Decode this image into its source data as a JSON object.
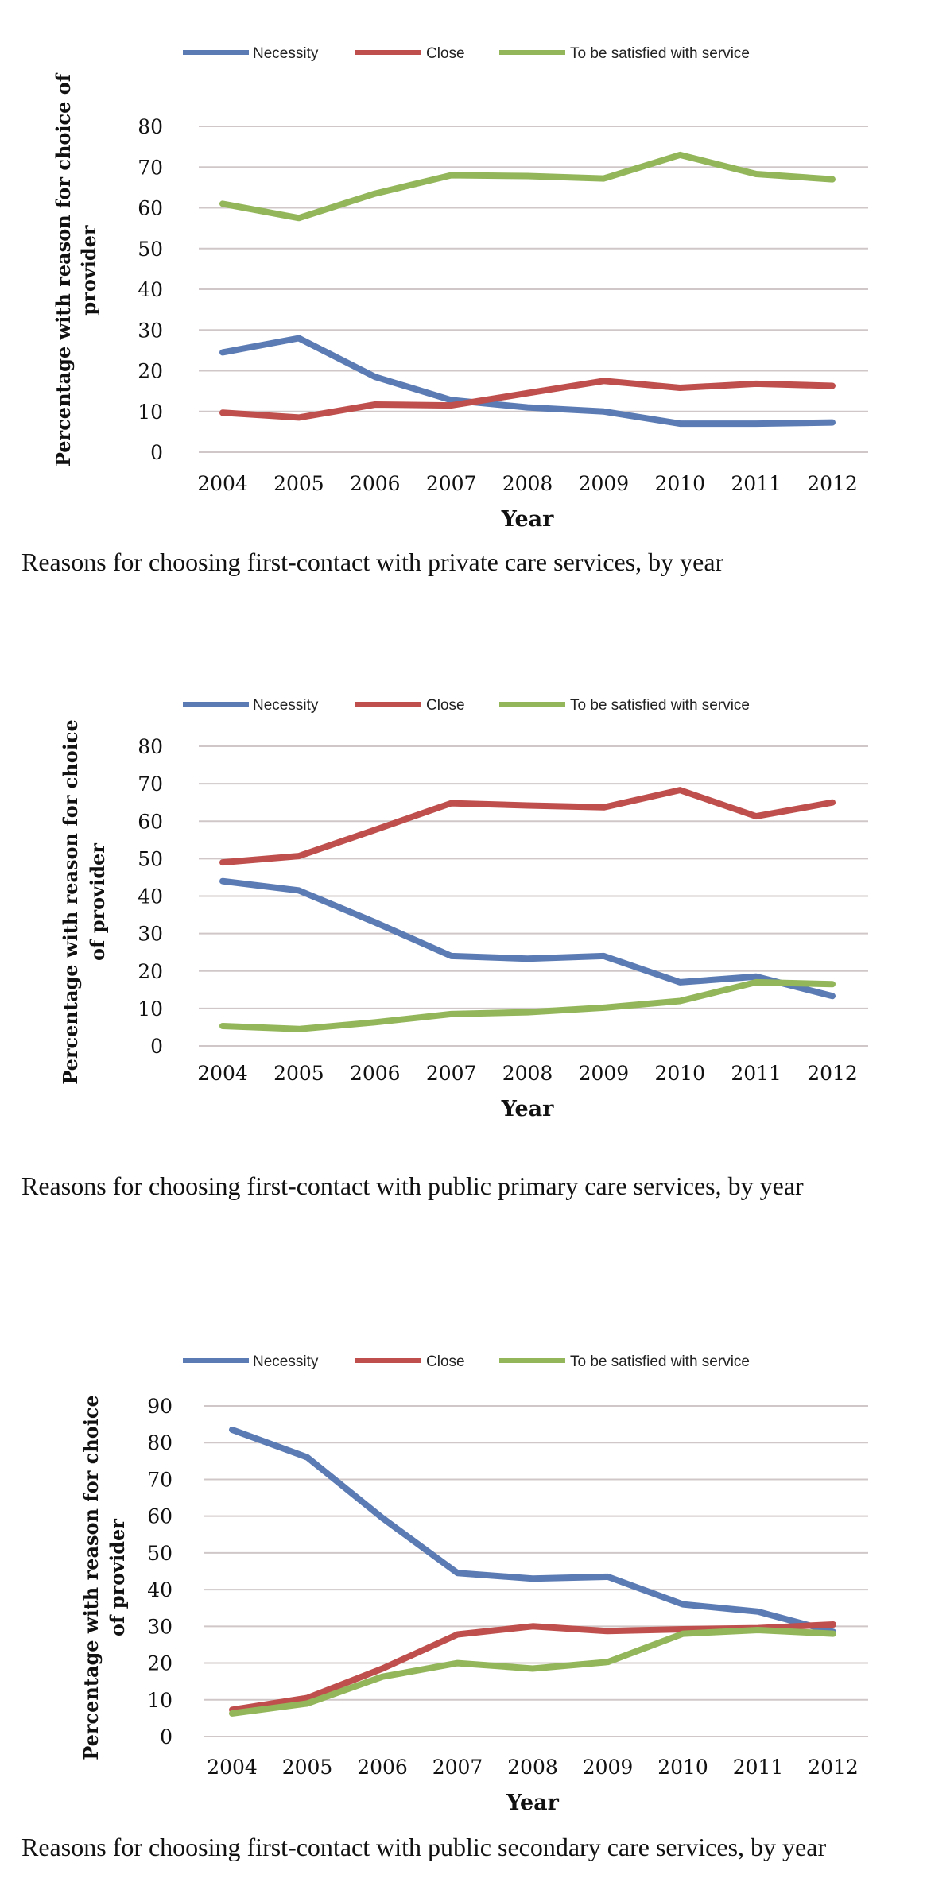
{
  "legend": {
    "necessity": "Necessity",
    "close": "Close",
    "satisfied": "To be satisfied with service"
  },
  "colors": {
    "necessity": "#5b7bb4",
    "close": "#bf4f4c",
    "satisfied": "#93b65a"
  },
  "chart_data": [
    {
      "type": "line",
      "caption": "Reasons for choosing first-contact with private care services, by year",
      "xlabel": "Year",
      "ylabel_lines": [
        "Percentage with reason for choice of",
        "provider"
      ],
      "categories": [
        "2004",
        "2005",
        "2006",
        "2007",
        "2008",
        "2009",
        "2010",
        "2011",
        "2012"
      ],
      "ylim": [
        0,
        80
      ],
      "yticks": [
        0,
        10,
        20,
        30,
        40,
        50,
        60,
        70,
        80
      ],
      "grid": true,
      "legend_position": "top",
      "series": [
        {
          "name": "Necessity",
          "values": [
            24.5,
            28,
            18.5,
            12.8,
            11,
            10,
            7,
            7,
            7.3
          ]
        },
        {
          "name": "Close",
          "values": [
            9.7,
            8.5,
            11.7,
            11.5,
            14.5,
            17.5,
            15.8,
            16.8,
            16.3
          ]
        },
        {
          "name": "To be satisfied with service",
          "values": [
            61,
            57.5,
            63.5,
            68,
            67.8,
            67.2,
            73,
            68.3,
            67
          ]
        }
      ]
    },
    {
      "type": "line",
      "caption": "Reasons for choosing first-contact with  public  primary care services, by year",
      "xlabel": "Year",
      "ylabel_lines": [
        "Percentage with reason for choice",
        "of provider"
      ],
      "categories": [
        "2004",
        "2005",
        "2006",
        "2007",
        "2008",
        "2009",
        "2010",
        "2011",
        "2012"
      ],
      "ylim": [
        0,
        80
      ],
      "yticks": [
        0,
        10,
        20,
        30,
        40,
        50,
        60,
        70,
        80
      ],
      "grid": true,
      "legend_position": "top",
      "series": [
        {
          "name": "Necessity",
          "values": [
            44,
            41.5,
            33,
            24,
            23.3,
            24,
            17,
            18.5,
            13.3
          ]
        },
        {
          "name": "Close",
          "values": [
            49,
            50.7,
            57.7,
            64.8,
            64.2,
            63.7,
            68.3,
            61.3,
            65
          ]
        },
        {
          "name": "To be satisfied with service",
          "values": [
            5.3,
            4.5,
            6.3,
            8.5,
            9,
            10.2,
            12,
            17,
            16.5
          ]
        }
      ]
    },
    {
      "type": "line",
      "caption": "Reasons for choosing first-contact with public secondary care services, by year",
      "xlabel": "Year",
      "ylabel_lines": [
        "Percentage with reason for choice",
        "of provider"
      ],
      "categories": [
        "2004",
        "2005",
        "2006",
        "2007",
        "2008",
        "2009",
        "2010",
        "2011",
        "2012"
      ],
      "ylim": [
        0,
        90
      ],
      "yticks": [
        0,
        10,
        20,
        30,
        40,
        50,
        60,
        70,
        80,
        90
      ],
      "grid": true,
      "legend_position": "top",
      "series": [
        {
          "name": "Necessity",
          "values": [
            83.5,
            76,
            59.5,
            44.5,
            43,
            43.5,
            36,
            34,
            28.5
          ]
        },
        {
          "name": "Close",
          "values": [
            7.3,
            10.5,
            18.5,
            27.8,
            30,
            28.7,
            29.2,
            29.5,
            30.5
          ]
        },
        {
          "name": "To be satisfied with service",
          "values": [
            6.3,
            9,
            16.3,
            20,
            18.5,
            20.3,
            28,
            29,
            28
          ]
        }
      ]
    }
  ]
}
